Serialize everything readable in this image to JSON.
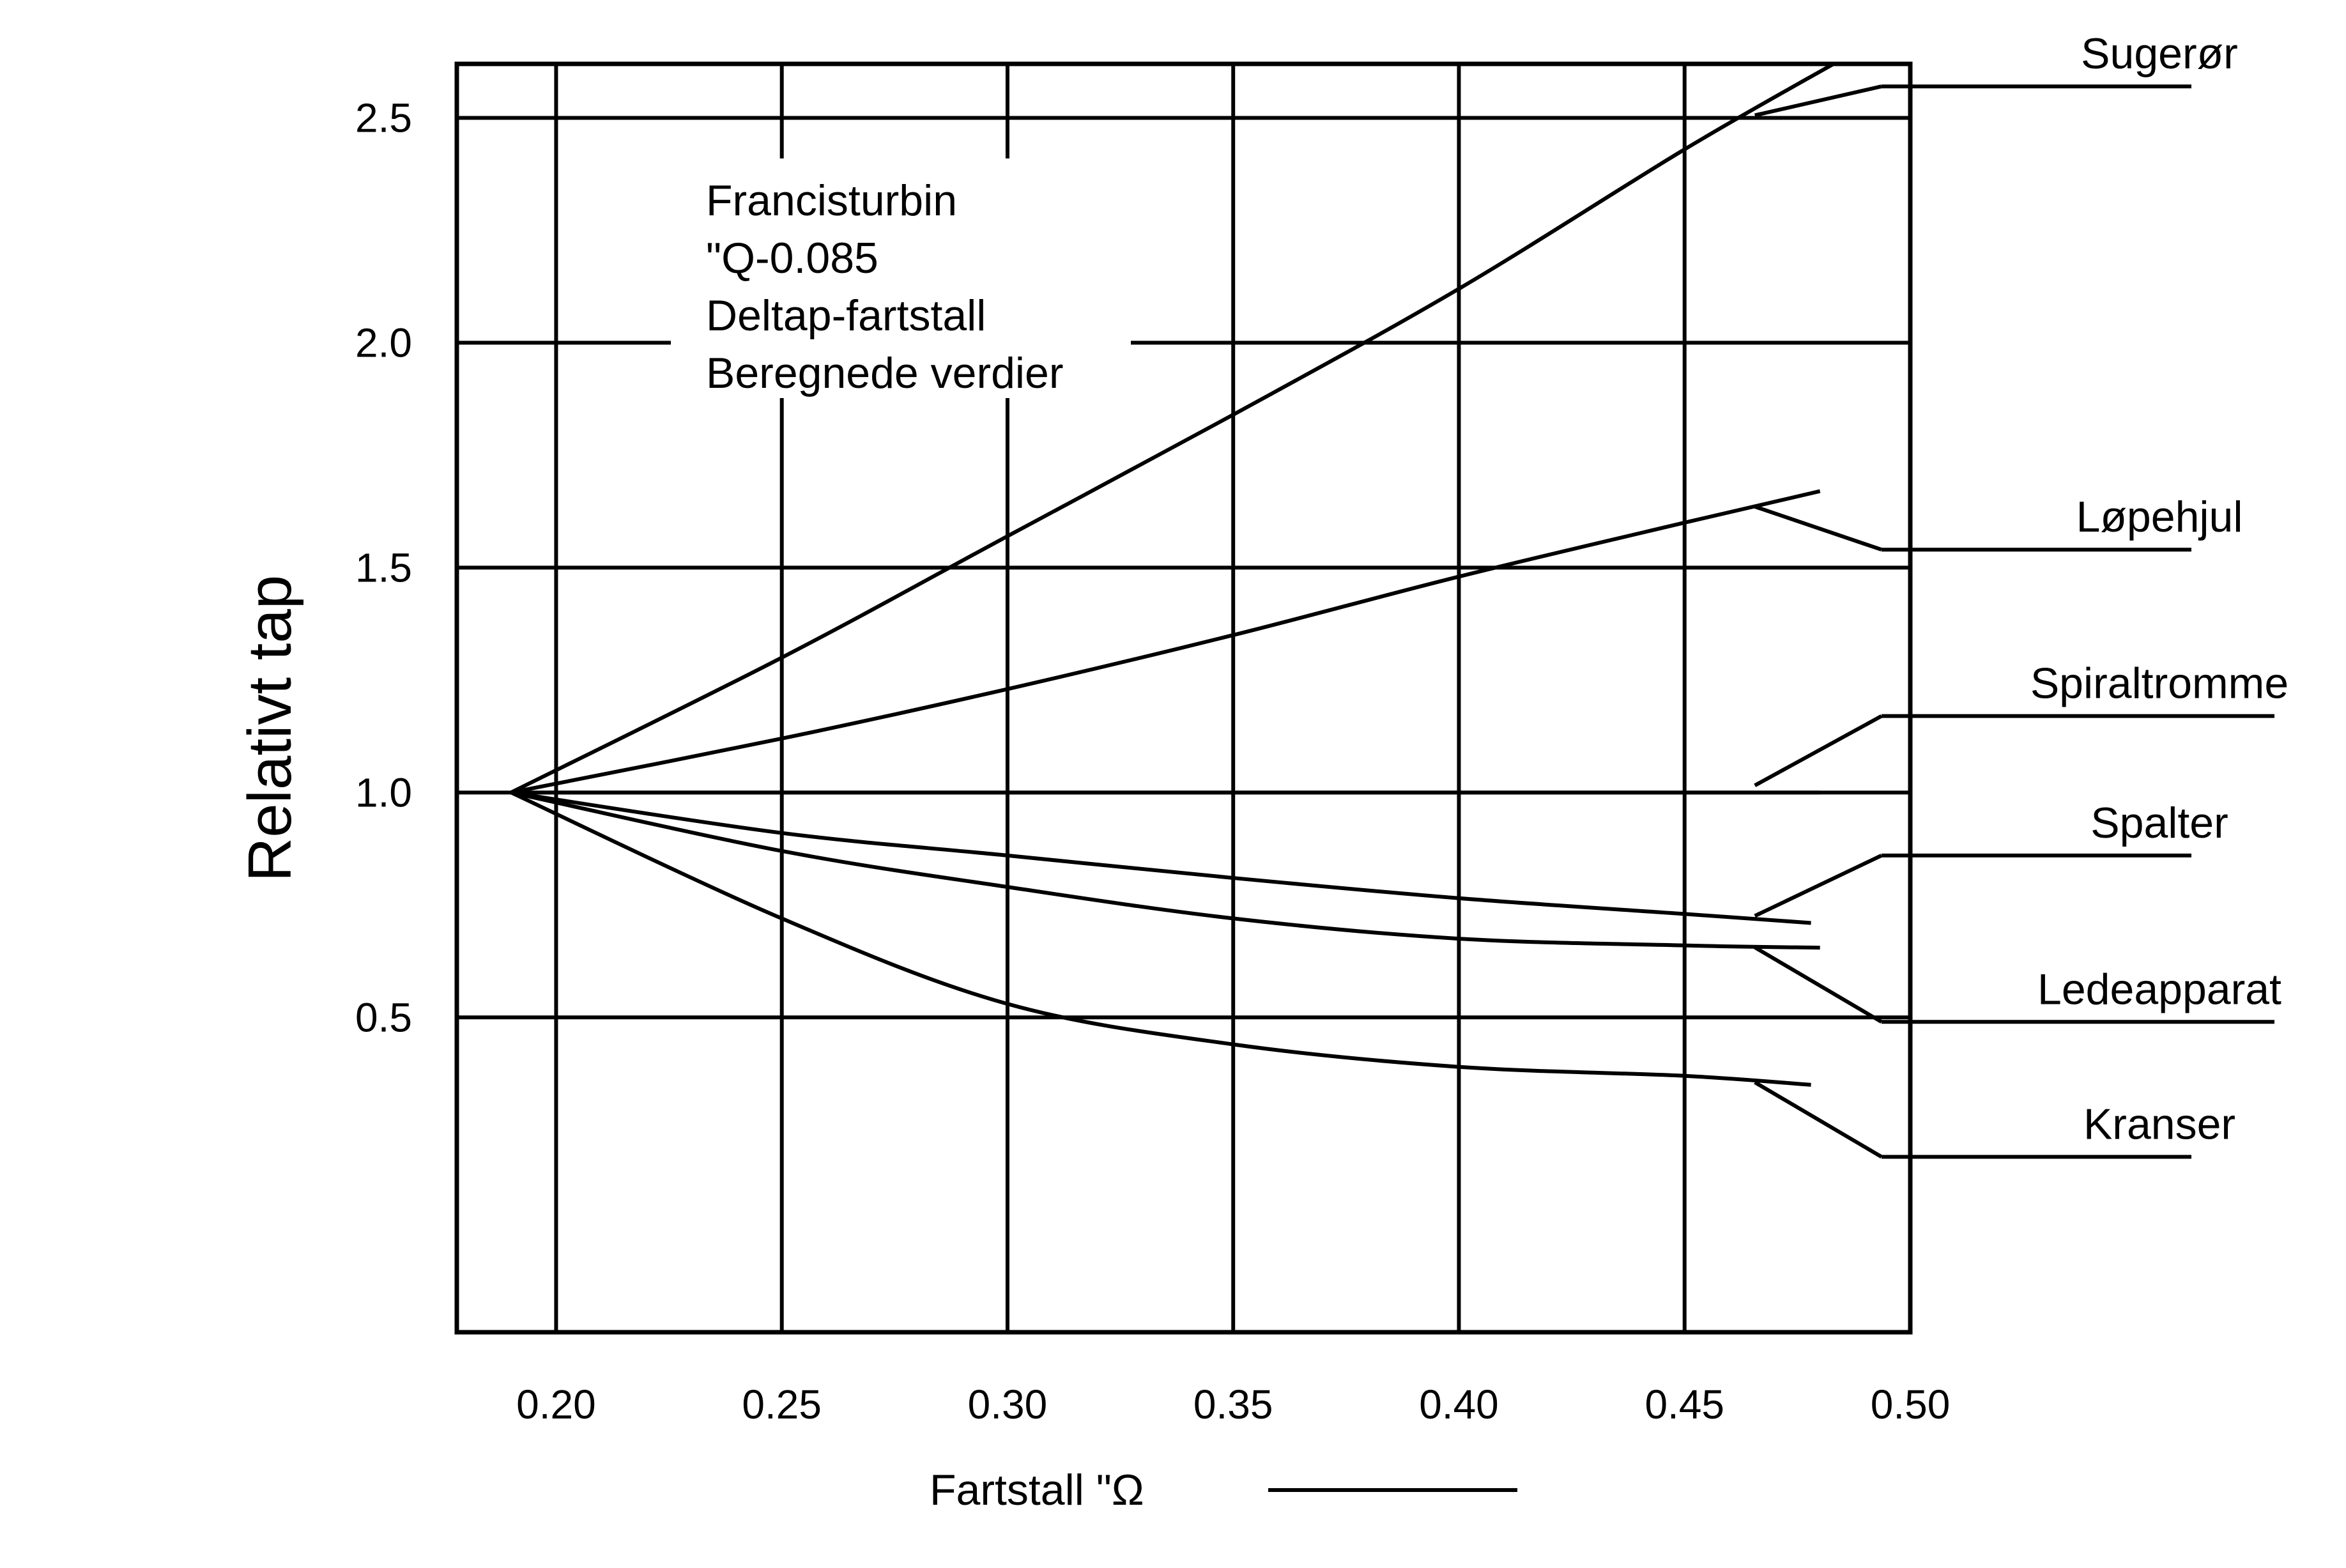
{
  "chart_data": {
    "type": "line",
    "title": "",
    "annotation": [
      "Francisturbin",
      "\"Q-0.085",
      "Deltap-fartstall",
      "Beregnede verdier"
    ],
    "xlabel": "Fartstall   \"Ω",
    "ylabel": "Relativt tap",
    "xlim": [
      0.178,
      0.5
    ],
    "ylim": [
      -0.2,
      2.62
    ],
    "x_ticks": [
      "0.20",
      "0.25",
      "0.30",
      "0.35",
      "0.40",
      "0.45",
      "0.50"
    ],
    "y_ticks": [
      "0.5",
      "1.0",
      "1.5",
      "2.0",
      "2.5"
    ],
    "grid": true,
    "series": [
      {
        "name": "Sugerør",
        "x": [
          0.19,
          0.25,
          0.3,
          0.35,
          0.4,
          0.45,
          0.483
        ],
        "y": [
          1.0,
          1.3,
          1.57,
          1.84,
          2.12,
          2.43,
          2.62
        ],
        "label_y": 2.57,
        "arrow_at": [
          0.465,
          2.5
        ]
      },
      {
        "name": "Løpehjul",
        "x": [
          0.19,
          0.25,
          0.3,
          0.35,
          0.4,
          0.45,
          0.48
        ],
        "y": [
          1.0,
          1.12,
          1.23,
          1.35,
          1.48,
          1.6,
          1.67
        ],
        "label_y": 1.54,
        "arrow_at": [
          0.465,
          1.63
        ]
      },
      {
        "name": "Spiraltromme",
        "x": [
          0.19,
          0.25,
          0.3,
          0.35,
          0.4,
          0.45,
          0.48
        ],
        "y": [
          1.0,
          1.0,
          1.0,
          1.0,
          1.0,
          1.0,
          1.0
        ],
        "label_y": 1.17,
        "arrow_at": [
          0.465,
          1.01
        ]
      },
      {
        "name": "Spalter",
        "x": [
          0.19,
          0.25,
          0.3,
          0.35,
          0.4,
          0.45,
          0.478
        ],
        "y": [
          1.0,
          0.91,
          0.86,
          0.81,
          0.765,
          0.73,
          0.71
        ],
        "label_y": 0.86,
        "arrow_at": [
          0.465,
          0.72
        ]
      },
      {
        "name": "Ledeapparat",
        "x": [
          0.19,
          0.25,
          0.3,
          0.35,
          0.4,
          0.45,
          0.48
        ],
        "y": [
          1.0,
          0.87,
          0.79,
          0.72,
          0.675,
          0.66,
          0.655
        ],
        "label_y": 0.49,
        "arrow_at": [
          0.465,
          0.65
        ]
      },
      {
        "name": "Kranser",
        "x": [
          0.19,
          0.25,
          0.3,
          0.35,
          0.4,
          0.45,
          0.478
        ],
        "y": [
          1.0,
          0.72,
          0.53,
          0.44,
          0.39,
          0.37,
          0.35
        ],
        "label_y": 0.19,
        "arrow_at": [
          0.465,
          0.35
        ]
      }
    ]
  }
}
